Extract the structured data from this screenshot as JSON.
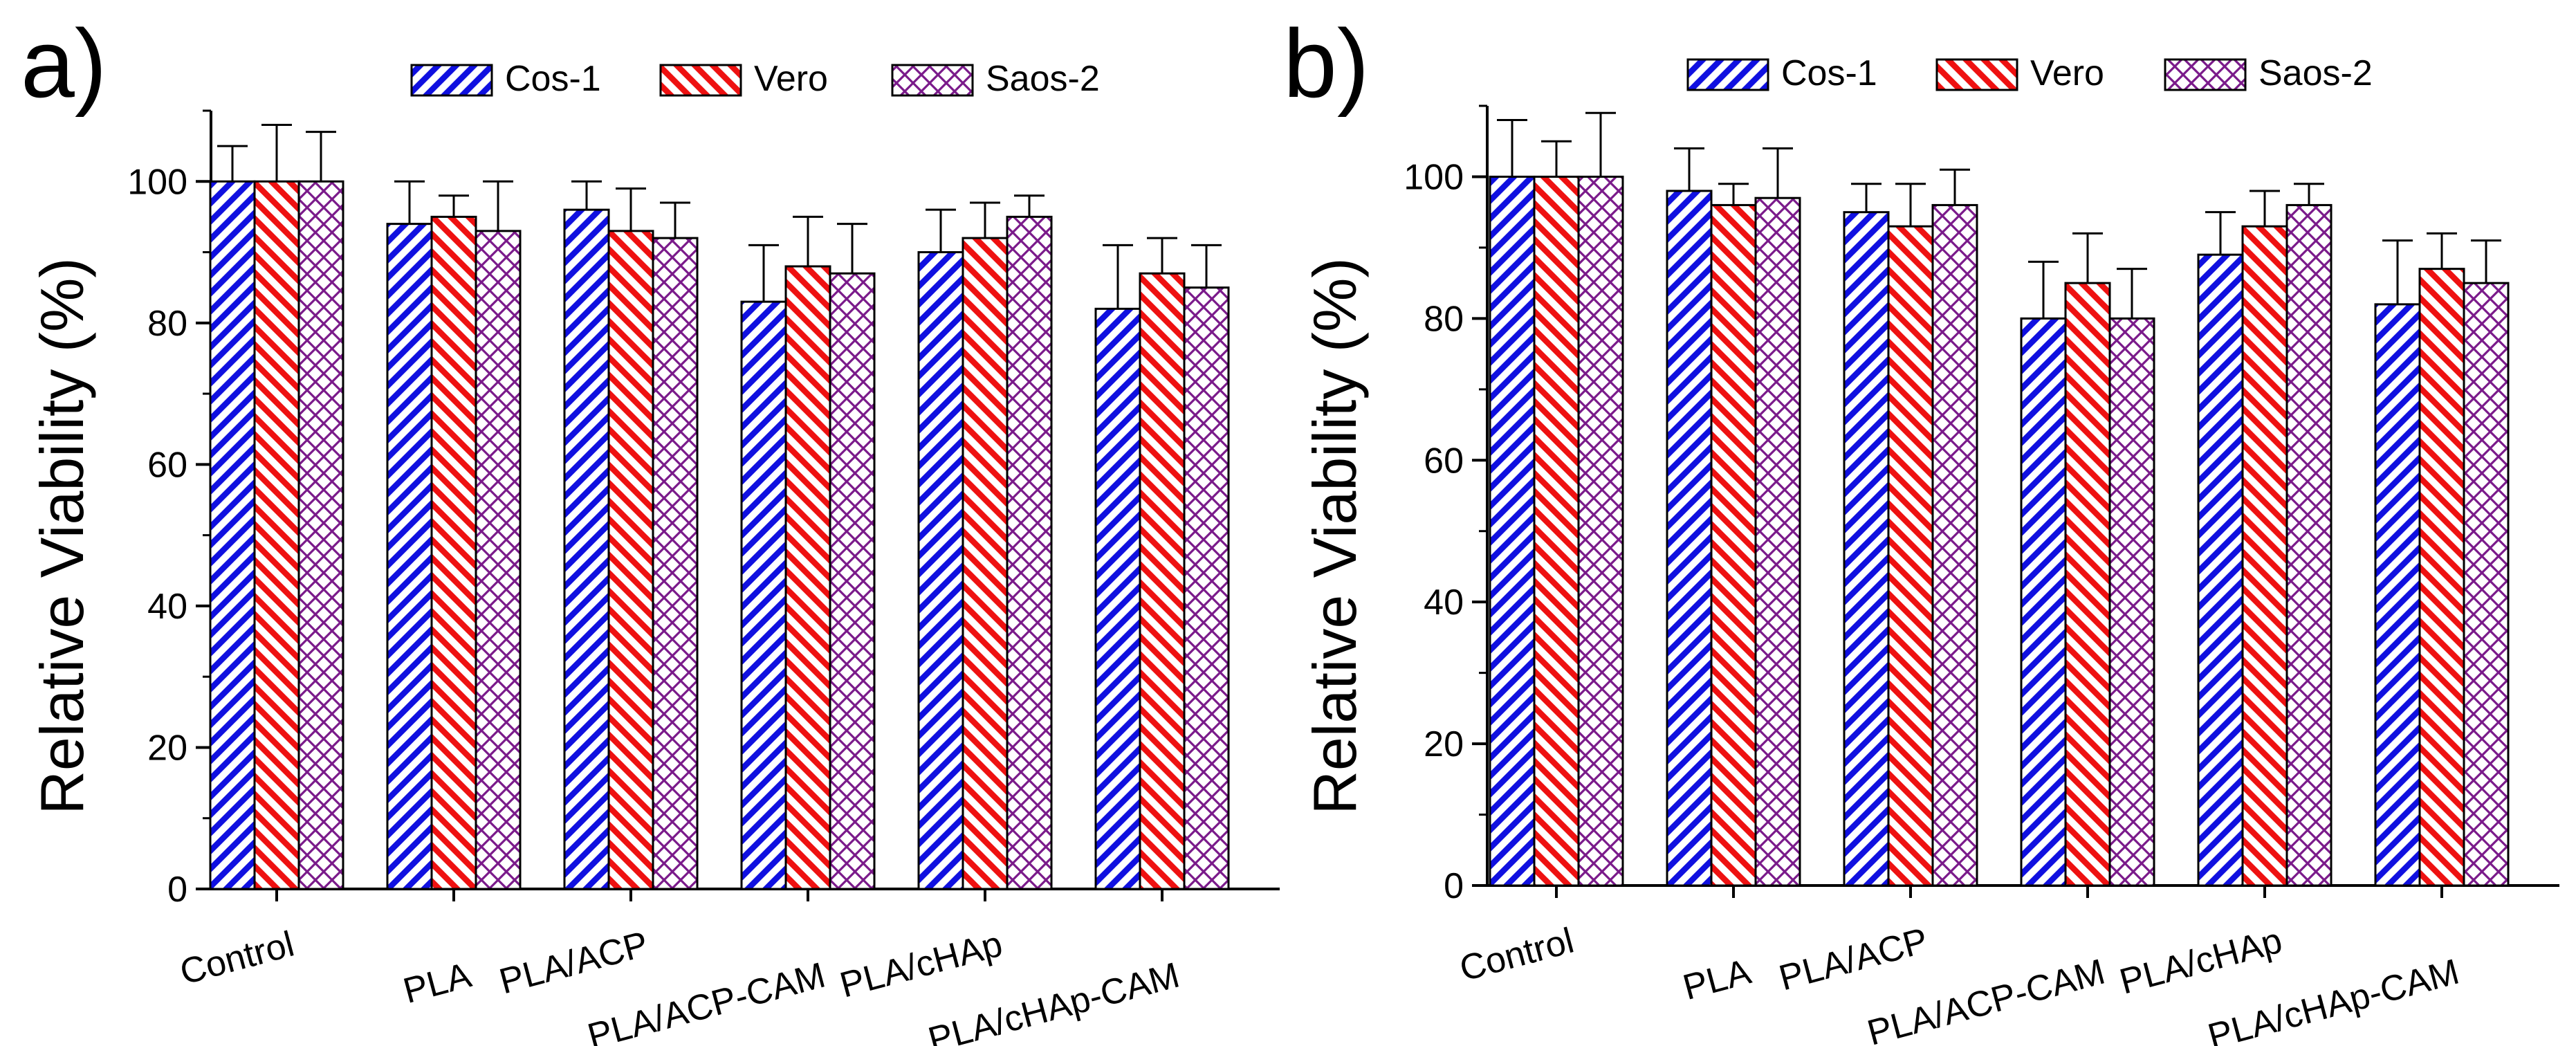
{
  "colors": {
    "Cos-1": "#1010e0",
    "Vero": "#ee1111",
    "Saos-2": "#7a1a8a",
    "axis": "#000000",
    "background": "#ffffff"
  },
  "chart_data": [
    {
      "panel_label": "a)",
      "type": "bar",
      "title": "",
      "xlabel": "",
      "ylabel": "Relative Viability (%)",
      "ylim": [
        0,
        110
      ],
      "yticks": [
        0,
        20,
        40,
        60,
        80,
        100
      ],
      "legend_position": "top",
      "categories": [
        "Control",
        "PLA",
        "PLA/ACP",
        "PLA/ACP-CAM",
        "PLA/cHAp",
        "PLA/cHAp-CAM"
      ],
      "series": [
        {
          "name": "Cos-1",
          "pattern": "diagonal-up",
          "values": [
            100,
            94,
            96,
            83,
            90,
            82
          ],
          "errors": [
            5,
            6,
            4,
            8,
            6,
            9
          ]
        },
        {
          "name": "Vero",
          "pattern": "diagonal-down",
          "values": [
            100,
            95,
            93,
            88,
            92,
            87
          ],
          "errors": [
            8,
            3,
            6,
            7,
            5,
            5
          ]
        },
        {
          "name": "Saos-2",
          "pattern": "crosshatch",
          "values": [
            100,
            93,
            92,
            87,
            95,
            85
          ],
          "errors": [
            7,
            7,
            5,
            7,
            3,
            6
          ]
        }
      ]
    },
    {
      "panel_label": "b)",
      "type": "bar",
      "title": "",
      "xlabel": "",
      "ylabel": "Relative Viability (%)",
      "ylim": [
        0,
        110
      ],
      "yticks": [
        0,
        20,
        40,
        60,
        80,
        100
      ],
      "legend_position": "top",
      "categories": [
        "Control",
        "PLA",
        "PLA/ACP",
        "PLA/ACP-CAM",
        "PLA/cHAp",
        "PLA/cHAp-CAM"
      ],
      "series": [
        {
          "name": "Cos-1",
          "pattern": "diagonal-up",
          "values": [
            100,
            98,
            95,
            80,
            89,
            82
          ],
          "errors": [
            8,
            6,
            4,
            8,
            6,
            9
          ]
        },
        {
          "name": "Vero",
          "pattern": "diagonal-down",
          "values": [
            100,
            96,
            93,
            85,
            93,
            87
          ],
          "errors": [
            5,
            3,
            6,
            7,
            5,
            5
          ]
        },
        {
          "name": "Saos-2",
          "pattern": "crosshatch",
          "values": [
            100,
            97,
            96,
            80,
            96,
            85
          ],
          "errors": [
            9,
            7,
            5,
            7,
            3,
            6
          ]
        }
      ]
    }
  ]
}
